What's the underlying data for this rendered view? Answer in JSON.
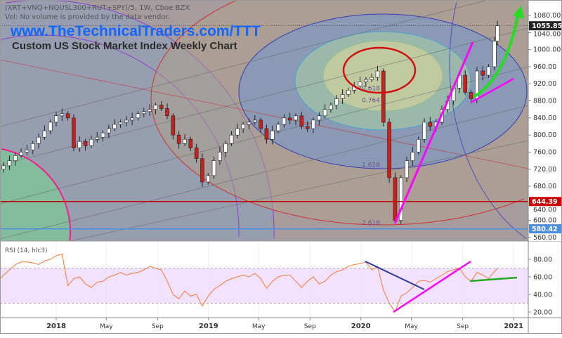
{
  "header": {
    "symbol_line": "(XRT+VNQ+NQUSL300+RUT+SPY)/5, 1W, Cboe BZX",
    "volume_line": "Vol: No volume is provided by the data vendor.",
    "website": "www.TheTechnicalTraders.com/TTT",
    "chart_title": "Custom US Stock Market Index Weekly Chart"
  },
  "colors": {
    "up_candle": "#ffffff",
    "down_candle": "#c8201c",
    "rsi_line": "#f07a3a",
    "rsi_band": "#efd8ff",
    "price_tag_last": "#222222",
    "price_tag_red": "#cc0000",
    "price_tag_blue": "#4a8fe0",
    "trend_magenta": "#ff00ff",
    "trend_green": "#22dd22",
    "trend_blue": "#2a3a9a"
  },
  "chart_data": {
    "type": "candlestick",
    "price_axis": {
      "ylim": [
        545,
        1100
      ],
      "ticks": [
        "1080.00",
        "1040.00",
        "1000.00",
        "960.00",
        "920.00",
        "880.00",
        "840.00",
        "800.00",
        "760.00",
        "720.00",
        "680.00",
        "640.00",
        "600.00",
        "560.00"
      ]
    },
    "time_axis": {
      "ticks": [
        {
          "label": "2018",
          "date": "2018-01-01"
        },
        {
          "label": "May",
          "date": "2018-05-01"
        },
        {
          "label": "Sep",
          "date": "2018-09-01"
        },
        {
          "label": "2019",
          "date": "2019-01-01"
        },
        {
          "label": "May",
          "date": "2019-05-01"
        },
        {
          "label": "Sep",
          "date": "2019-09-01"
        },
        {
          "label": "2020",
          "date": "2020-01-01"
        },
        {
          "label": "May",
          "date": "2020-05-01"
        },
        {
          "label": "Sep",
          "date": "2020-09-01"
        },
        {
          "label": "2021",
          "date": "2021-01-01"
        }
      ]
    },
    "price_tags": [
      {
        "label": "1055.85",
        "value": 1055.85,
        "kind": "last"
      },
      {
        "label": "644.39",
        "value": 644.39,
        "kind": "red"
      },
      {
        "label": "580.42",
        "value": 580.42,
        "kind": "blue"
      }
    ],
    "fib_labels": [
      {
        "label": "0.618",
        "value": 905
      },
      {
        "label": "0.764",
        "value": 877
      },
      {
        "label": "1.618",
        "value": 725
      },
      {
        "label": "2.618",
        "value": 590
      }
    ],
    "closes": [
      [
        "2017-08-14",
        720
      ],
      [
        "2017-08-28",
        728
      ],
      [
        "2017-09-11",
        740
      ],
      [
        "2017-09-25",
        752
      ],
      [
        "2017-10-09",
        760
      ],
      [
        "2017-10-23",
        765
      ],
      [
        "2017-11-06",
        780
      ],
      [
        "2017-11-20",
        795
      ],
      [
        "2017-12-04",
        810
      ],
      [
        "2017-12-18",
        830
      ],
      [
        "2018-01-01",
        845
      ],
      [
        "2018-01-15",
        850
      ],
      [
        "2018-01-29",
        840
      ],
      [
        "2018-02-12",
        770
      ],
      [
        "2018-02-26",
        785
      ],
      [
        "2018-03-12",
        775
      ],
      [
        "2018-03-26",
        790
      ],
      [
        "2018-04-09",
        795
      ],
      [
        "2018-04-23",
        805
      ],
      [
        "2018-05-07",
        815
      ],
      [
        "2018-05-21",
        825
      ],
      [
        "2018-06-04",
        830
      ],
      [
        "2018-06-18",
        835
      ],
      [
        "2018-07-02",
        840
      ],
      [
        "2018-07-16",
        850
      ],
      [
        "2018-07-30",
        855
      ],
      [
        "2018-08-13",
        860
      ],
      [
        "2018-08-27",
        870
      ],
      [
        "2018-09-10",
        862
      ],
      [
        "2018-09-24",
        845
      ],
      [
        "2018-10-08",
        800
      ],
      [
        "2018-10-22",
        780
      ],
      [
        "2018-11-05",
        790
      ],
      [
        "2018-11-19",
        770
      ],
      [
        "2018-12-03",
        745
      ],
      [
        "2018-12-17",
        690
      ],
      [
        "2018-12-31",
        705
      ],
      [
        "2019-01-14",
        740
      ],
      [
        "2019-01-28",
        760
      ],
      [
        "2019-02-11",
        780
      ],
      [
        "2019-02-25",
        800
      ],
      [
        "2019-03-11",
        815
      ],
      [
        "2019-03-25",
        825
      ],
      [
        "2019-04-08",
        830
      ],
      [
        "2019-04-22",
        835
      ],
      [
        "2019-05-06",
        815
      ],
      [
        "2019-05-20",
        790
      ],
      [
        "2019-06-03",
        810
      ],
      [
        "2019-06-17",
        825
      ],
      [
        "2019-07-01",
        840
      ],
      [
        "2019-07-15",
        835
      ],
      [
        "2019-07-29",
        845
      ],
      [
        "2019-08-12",
        820
      ],
      [
        "2019-08-26",
        815
      ],
      [
        "2019-09-09",
        835
      ],
      [
        "2019-09-23",
        845
      ],
      [
        "2019-10-07",
        860
      ],
      [
        "2019-10-21",
        870
      ],
      [
        "2019-11-04",
        885
      ],
      [
        "2019-11-18",
        895
      ],
      [
        "2019-12-02",
        905
      ],
      [
        "2019-12-16",
        915
      ],
      [
        "2019-12-30",
        925
      ],
      [
        "2020-01-13",
        930
      ],
      [
        "2020-01-27",
        935
      ],
      [
        "2020-02-10",
        950
      ],
      [
        "2020-02-24",
        830
      ],
      [
        "2020-03-09",
        700
      ],
      [
        "2020-03-23",
        600
      ],
      [
        "2020-04-06",
        700
      ],
      [
        "2020-04-20",
        740
      ],
      [
        "2020-05-04",
        760
      ],
      [
        "2020-05-18",
        790
      ],
      [
        "2020-06-01",
        830
      ],
      [
        "2020-06-15",
        820
      ],
      [
        "2020-06-29",
        830
      ],
      [
        "2020-07-13",
        860
      ],
      [
        "2020-07-27",
        880
      ],
      [
        "2020-08-10",
        910
      ],
      [
        "2020-08-24",
        940
      ],
      [
        "2020-09-07",
        900
      ],
      [
        "2020-09-21",
        885
      ],
      [
        "2020-10-05",
        950
      ],
      [
        "2020-10-19",
        940
      ],
      [
        "2020-11-02",
        960
      ],
      [
        "2020-11-16",
        1020
      ],
      [
        "2020-11-23",
        1055.85
      ]
    ],
    "rsi": {
      "label": "RSI (14, hlc3)",
      "ylim": [
        10,
        95
      ],
      "ticks": [
        "80.00",
        "60.00",
        "40.00",
        "20.00"
      ],
      "bands": [
        30,
        70
      ],
      "values": [
        55,
        62,
        68,
        74,
        77,
        77,
        76,
        74,
        78,
        80,
        84,
        86,
        50,
        58,
        60,
        52,
        48,
        54,
        55,
        60,
        62,
        65,
        62,
        64,
        65,
        68,
        72,
        70,
        68,
        55,
        40,
        35,
        44,
        38,
        40,
        27,
        38,
        46,
        50,
        55,
        58,
        60,
        62,
        60,
        64,
        58,
        47,
        55,
        60,
        62,
        62,
        55,
        48,
        55,
        60,
        52,
        55,
        62,
        66,
        68,
        72,
        74,
        75,
        77,
        68,
        72,
        45,
        30,
        20,
        38,
        42,
        48,
        55,
        56,
        54,
        58,
        62,
        66,
        68,
        70,
        60,
        55,
        65,
        62,
        58,
        66,
        70
      ]
    }
  }
}
